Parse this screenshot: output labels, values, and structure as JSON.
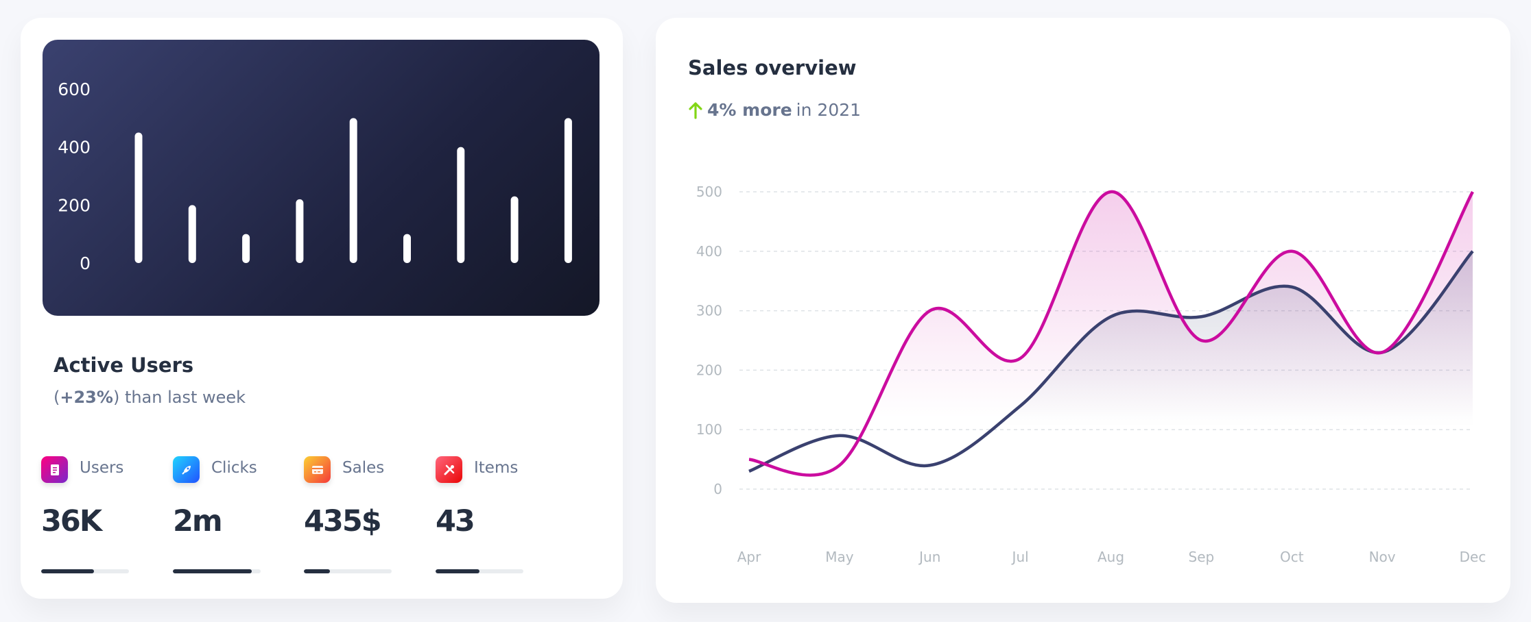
{
  "active_users": {
    "title": "Active Users",
    "change": "+23%",
    "subtitle_suffix": "than last week",
    "stats": [
      {
        "label": "Users",
        "value": "36K",
        "icon": "document-icon",
        "progress": 60
      },
      {
        "label": "Clicks",
        "value": "2m",
        "icon": "rocket-icon",
        "progress": 90
      },
      {
        "label": "Sales",
        "value": "435$",
        "icon": "credit-card-icon",
        "progress": 30
      },
      {
        "label": "Items",
        "value": "43",
        "icon": "tools-icon",
        "progress": 50
      }
    ]
  },
  "sales_overview": {
    "title": "Sales overview",
    "change": "4% more",
    "period": "in 2021",
    "trend_icon": "arrow-up-icon",
    "trend_color": "#82d616"
  },
  "chart_data": [
    {
      "type": "bar",
      "categories": [
        "",
        "",
        "",
        "",
        "",
        "",
        "",
        "",
        ""
      ],
      "values": [
        450,
        200,
        100,
        220,
        500,
        100,
        400,
        230,
        500
      ],
      "yticks": [
        "0",
        "200",
        "400",
        "600"
      ],
      "ylim": [
        0,
        600
      ],
      "grid": false,
      "bar_color": "#ffffff"
    },
    {
      "type": "area",
      "categories": [
        "Apr",
        "May",
        "Jun",
        "Jul",
        "Aug",
        "Sep",
        "Oct",
        "Nov",
        "Dec"
      ],
      "yticks": [
        "0",
        "100",
        "200",
        "300",
        "400",
        "500"
      ],
      "ylim": [
        0,
        500
      ],
      "grid": true,
      "series": [
        {
          "values": [
            50,
            40,
            300,
            220,
            500,
            250,
            400,
            230,
            500
          ],
          "color": "#cb0c9f"
        },
        {
          "values": [
            30,
            90,
            40,
            140,
            290,
            290,
            340,
            230,
            400
          ],
          "color": "#3a416f"
        }
      ]
    }
  ]
}
